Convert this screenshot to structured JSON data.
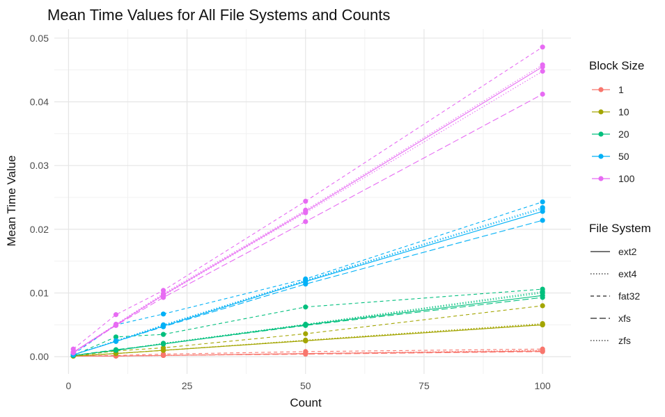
{
  "chart_data": {
    "type": "line",
    "title": "Mean Time Values for All File Systems and Counts",
    "xlabel": "Count",
    "ylabel": "Mean Time Value",
    "xlim": [
      -3,
      106
    ],
    "ylim": [
      -0.0027,
      0.0514
    ],
    "x_ticks": [
      0,
      25,
      50,
      75,
      100
    ],
    "x_tick_labels": [
      "0",
      "25",
      "50",
      "75",
      "100"
    ],
    "y_ticks": [
      0,
      0.01,
      0.02,
      0.03,
      0.04,
      0.05
    ],
    "y_tick_labels": [
      "0.00",
      "0.01",
      "0.02",
      "0.03",
      "0.04",
      "0.05"
    ],
    "grid": true,
    "x": [
      1,
      10,
      20,
      50,
      100
    ],
    "legend_position": "right",
    "color_legend": {
      "title": "Block Size",
      "items": [
        {
          "label": "1",
          "color": "#F8766D"
        },
        {
          "label": "10",
          "color": "#A3A500"
        },
        {
          "label": "20",
          "color": "#00BF7D"
        },
        {
          "label": "50",
          "color": "#00B0F6"
        },
        {
          "label": "100",
          "color": "#E76BF3"
        }
      ]
    },
    "linetype_legend": {
      "title": "File System",
      "items": [
        {
          "label": "ext2",
          "dash": "solid"
        },
        {
          "label": "ext4",
          "dash": "dotted"
        },
        {
          "label": "fat32",
          "dash": "dashed"
        },
        {
          "label": "xfs",
          "dash": "longdash"
        },
        {
          "label": "zfs",
          "dash": "dotted"
        }
      ]
    },
    "series": [
      {
        "block": "1",
        "fs": "ext2",
        "values": [
          0.0001,
          0.0001,
          0.0002,
          0.0005,
          0.0009
        ]
      },
      {
        "block": "1",
        "fs": "ext4",
        "values": [
          0.0001,
          0.0001,
          0.0002,
          0.0005,
          0.001
        ]
      },
      {
        "block": "1",
        "fs": "fat32",
        "values": [
          0.0001,
          0.0002,
          0.0004,
          0.0008,
          0.0012
        ]
      },
      {
        "block": "1",
        "fs": "xfs",
        "values": [
          0.0001,
          0.0001,
          0.0002,
          0.0004,
          0.0008
        ]
      },
      {
        "block": "1",
        "fs": "zfs",
        "values": [
          0.0001,
          0.0001,
          0.0002,
          0.0005,
          0.0009
        ]
      },
      {
        "block": "10",
        "fs": "ext2",
        "values": [
          0.0001,
          0.0005,
          0.001,
          0.0025,
          0.005
        ]
      },
      {
        "block": "10",
        "fs": "ext4",
        "values": [
          0.0001,
          0.0005,
          0.001,
          0.0025,
          0.0051
        ]
      },
      {
        "block": "10",
        "fs": "fat32",
        "values": [
          0.0001,
          0.0009,
          0.0014,
          0.0036,
          0.008
        ]
      },
      {
        "block": "10",
        "fs": "xfs",
        "values": [
          0.0001,
          0.0005,
          0.001,
          0.0025,
          0.005
        ]
      },
      {
        "block": "10",
        "fs": "zfs",
        "values": [
          0.0001,
          0.0005,
          0.001,
          0.0026,
          0.0052
        ]
      },
      {
        "block": "20",
        "fs": "ext2",
        "values": [
          0.0002,
          0.001,
          0.002,
          0.005,
          0.0096
        ]
      },
      {
        "block": "20",
        "fs": "ext4",
        "values": [
          0.0002,
          0.001,
          0.0021,
          0.005,
          0.01
        ]
      },
      {
        "block": "20",
        "fs": "fat32",
        "values": [
          0.0002,
          0.0031,
          0.0035,
          0.0078,
          0.0106
        ]
      },
      {
        "block": "20",
        "fs": "xfs",
        "values": [
          0.0002,
          0.0011,
          0.002,
          0.0049,
          0.0093
        ]
      },
      {
        "block": "20",
        "fs": "zfs",
        "values": [
          0.0002,
          0.001,
          0.0021,
          0.0051,
          0.0102
        ]
      },
      {
        "block": "50",
        "fs": "ext2",
        "values": [
          0.0003,
          0.0024,
          0.0048,
          0.0118,
          0.0228
        ]
      },
      {
        "block": "50",
        "fs": "ext4",
        "values": [
          0.0003,
          0.0025,
          0.0049,
          0.0119,
          0.0232
        ]
      },
      {
        "block": "50",
        "fs": "fat32",
        "values": [
          0.0004,
          0.005,
          0.0067,
          0.0122,
          0.0243
        ]
      },
      {
        "block": "50",
        "fs": "xfs",
        "values": [
          0.0003,
          0.0024,
          0.0047,
          0.0114,
          0.0214
        ]
      },
      {
        "block": "50",
        "fs": "zfs",
        "values": [
          0.0003,
          0.0025,
          0.005,
          0.012,
          0.0234
        ]
      },
      {
        "block": "100",
        "fs": "ext2",
        "values": [
          0.0007,
          0.005,
          0.0097,
          0.0228,
          0.0455
        ]
      },
      {
        "block": "100",
        "fs": "ext4",
        "values": [
          0.0007,
          0.0051,
          0.0099,
          0.023,
          0.0458
        ]
      },
      {
        "block": "100",
        "fs": "fat32",
        "values": [
          0.0012,
          0.0066,
          0.0104,
          0.0244,
          0.0486
        ]
      },
      {
        "block": "100",
        "fs": "xfs",
        "values": [
          0.0006,
          0.0049,
          0.0093,
          0.0212,
          0.0412
        ]
      },
      {
        "block": "100",
        "fs": "zfs",
        "values": [
          0.0007,
          0.005,
          0.0096,
          0.0226,
          0.0448
        ]
      }
    ]
  }
}
